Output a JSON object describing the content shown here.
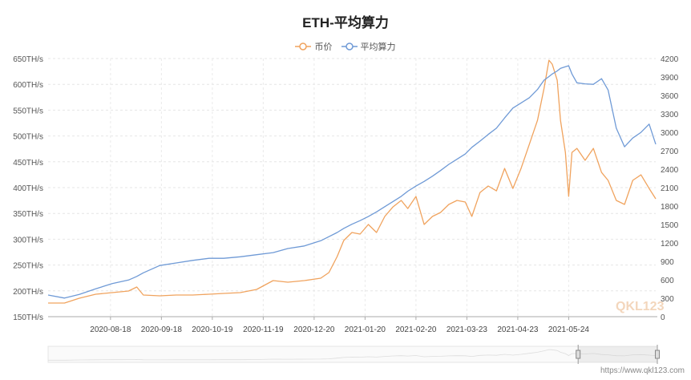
{
  "chart_data": {
    "type": "line",
    "title": "ETH-平均算力",
    "legend_position": "top",
    "grid": true,
    "x": [
      "2020-07-11",
      "2020-07-21",
      "2020-07-30",
      "2020-08-09",
      "2020-08-19",
      "2020-08-29",
      "2020-09-03",
      "2020-09-07",
      "2020-09-17",
      "2020-09-27",
      "2020-10-07",
      "2020-10-17",
      "2020-10-26",
      "2020-11-05",
      "2020-11-15",
      "2020-11-25",
      "2020-12-04",
      "2020-12-14",
      "2020-12-24",
      "2020-12-29",
      "2021-01-03",
      "2021-01-07",
      "2021-01-12",
      "2021-01-17",
      "2021-01-22",
      "2021-01-27",
      "2021-02-01",
      "2021-02-06",
      "2021-02-11",
      "2021-02-15",
      "2021-02-20",
      "2021-02-25",
      "2021-03-02",
      "2021-03-07",
      "2021-03-12",
      "2021-03-17",
      "2021-03-22",
      "2021-03-26",
      "2021-03-31",
      "2021-04-05",
      "2021-04-10",
      "2021-04-15",
      "2021-04-20",
      "2021-04-25",
      "2021-04-30",
      "2021-05-05",
      "2021-05-09",
      "2021-05-12",
      "2021-05-14",
      "2021-05-17",
      "2021-05-19",
      "2021-05-22",
      "2021-05-24",
      "2021-05-26",
      "2021-05-29",
      "2021-06-03",
      "2021-06-08",
      "2021-06-13",
      "2021-06-17",
      "2021-06-22",
      "2021-06-27",
      "2021-07-02",
      "2021-07-07",
      "2021-07-12",
      "2021-07-16"
    ],
    "x_range": [
      "2020-07-11",
      "2021-07-16"
    ],
    "x_ticks": [
      "2020-08-18",
      "2020-09-18",
      "2020-10-19",
      "2020-11-19",
      "2020-12-20",
      "2021-01-20",
      "2021-02-20",
      "2021-03-23",
      "2021-04-23",
      "2021-05-24"
    ],
    "y_left": {
      "min": 150,
      "max": 650,
      "step": 50,
      "unit": "TH/s",
      "ticks": [
        "650TH/s",
        "600TH/s",
        "550TH/s",
        "500TH/s",
        "450TH/s",
        "400TH/s",
        "350TH/s",
        "300TH/s",
        "250TH/s",
        "200TH/s",
        "150TH/s"
      ]
    },
    "y_right": {
      "min": 0,
      "max": 4200,
      "step": 300,
      "ticks": [
        "4200",
        "3900",
        "3600",
        "3300",
        "3000",
        "2700",
        "2400",
        "2100",
        "1800",
        "1500",
        "1200",
        "900",
        "600",
        "300",
        "0"
      ]
    },
    "series": [
      {
        "name": "币价",
        "axis": "right",
        "color": "#f0a35e",
        "values": [
          222,
          222,
          300,
          365,
          391,
          417,
          482,
          352,
          339,
          352,
          352,
          365,
          378,
          391,
          443,
          587,
          561,
          587,
          626,
          717,
          978,
          1239,
          1369,
          1343,
          1500,
          1369,
          1630,
          1786,
          1891,
          1760,
          1956,
          1500,
          1630,
          1695,
          1826,
          1891,
          1865,
          1630,
          2021,
          2126,
          2047,
          2412,
          2086,
          2412,
          2803,
          3195,
          3716,
          4173,
          4108,
          3847,
          3195,
          2673,
          1956,
          2673,
          2738,
          2543,
          2738,
          2347,
          2217,
          1891,
          1826,
          2217,
          2308,
          2086,
          1917
        ]
      },
      {
        "name": "平均算力",
        "axis": "left",
        "color": "#6f9ad6",
        "values": [
          192,
          186,
          193,
          204,
          214,
          221,
          228,
          235,
          249,
          254,
          259,
          263,
          263,
          266,
          270,
          274,
          282,
          287,
          297,
          305,
          313,
          321,
          329,
          336,
          344,
          353,
          363,
          373,
          383,
          393,
          403,
          412,
          422,
          433,
          445,
          455,
          465,
          478,
          490,
          503,
          515,
          535,
          554,
          564,
          574,
          590,
          608,
          615,
          620,
          626,
          631,
          634,
          636,
          620,
          603,
          601,
          600,
          611,
          589,
          515,
          479,
          496,
          507,
          523,
          484
        ]
      }
    ],
    "datazoom": {
      "start_percent": 87,
      "end_percent": 100
    },
    "watermark": "QKL123"
  },
  "footer": {
    "source": "https://www.qkl123.com"
  }
}
